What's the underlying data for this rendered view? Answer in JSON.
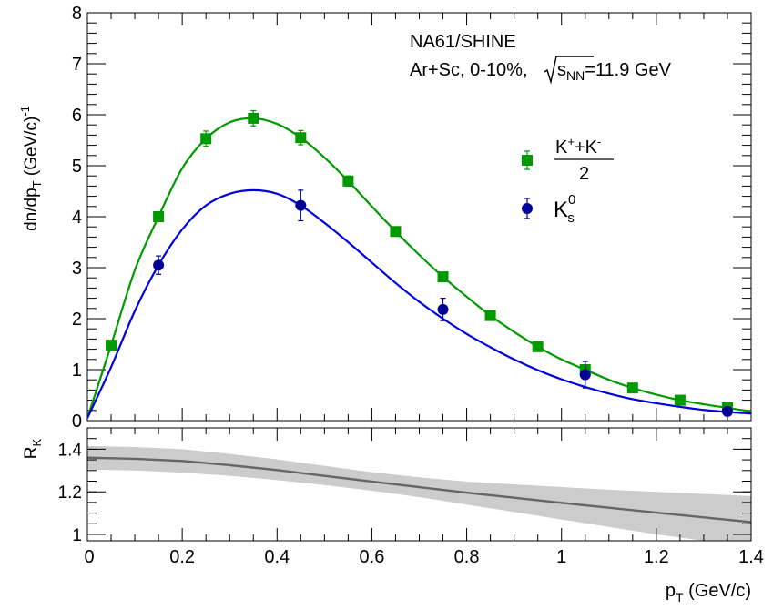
{
  "chart_data": [
    {
      "type": "scatter",
      "panel": "main",
      "annotations": {
        "experiment": "NA61/SHINE",
        "system": "Ar+Sc, 0-10%, ",
        "sqrt_label": "s",
        "sqrt_sub": "NN",
        "energy": "=11.9 GeV"
      },
      "ylabel": {
        "main": "dn/dp",
        "sub": "T",
        "units": " (GeV/c)",
        "sup": "-1"
      },
      "xlim": [
        0,
        1.4
      ],
      "ylim": [
        0,
        8
      ],
      "xticks": [
        "0",
        "0.2",
        "0.4",
        "0.6",
        "0.8",
        "1",
        "1.2",
        "1.4"
      ],
      "yticks": [
        "0",
        "1",
        "2",
        "3",
        "4",
        "5",
        "6",
        "7",
        "8"
      ],
      "legend": {
        "position": "right",
        "kcharged": {
          "num": "K",
          "plus_sup": "+",
          "plus": "+K",
          "minus_sup": "-",
          "den": "2"
        },
        "k0s": {
          "main": "K",
          "sup": "0",
          "sub": "s"
        }
      },
      "series": [
        {
          "key": "kcharged",
          "marker": "square",
          "color": "#009900",
          "x": [
            0.05,
            0.15,
            0.25,
            0.35,
            0.45,
            0.55,
            0.65,
            0.75,
            0.85,
            0.95,
            1.05,
            1.15,
            1.25,
            1.35
          ],
          "y": [
            1.48,
            4.0,
            5.53,
            5.93,
            5.55,
            4.7,
            3.71,
            2.82,
            2.06,
            1.45,
            1.0,
            0.64,
            0.4,
            0.25
          ],
          "err": [
            0.06,
            0.08,
            0.15,
            0.15,
            0.14,
            0.1,
            0.08,
            0.06,
            0.05,
            0.04,
            0.04,
            0.03,
            0.03,
            0.02
          ]
        },
        {
          "key": "k0s",
          "marker": "circle",
          "color": "#000099",
          "x": [
            0.15,
            0.45,
            0.75,
            1.05,
            1.35
          ],
          "y": [
            3.05,
            4.22,
            2.18,
            0.9,
            0.18
          ],
          "err": [
            0.18,
            0.3,
            0.22,
            0.26,
            0.06
          ]
        }
      ],
      "fits": [
        {
          "key": "kcharged-fit",
          "color": "#009900",
          "x": [
            0.0,
            0.05,
            0.1,
            0.15,
            0.2,
            0.25,
            0.3,
            0.35,
            0.4,
            0.45,
            0.5,
            0.55,
            0.6,
            0.65,
            0.7,
            0.75,
            0.8,
            0.85,
            0.9,
            0.95,
            1.0,
            1.05,
            1.1,
            1.15,
            1.2,
            1.25,
            1.3,
            1.35,
            1.4
          ],
          "y": [
            0.05,
            1.48,
            2.95,
            4.0,
            4.95,
            5.53,
            5.85,
            5.93,
            5.82,
            5.55,
            5.16,
            4.7,
            4.2,
            3.71,
            3.25,
            2.82,
            2.43,
            2.06,
            1.74,
            1.45,
            1.2,
            1.0,
            0.8,
            0.64,
            0.51,
            0.4,
            0.32,
            0.25,
            0.18
          ]
        },
        {
          "key": "k0s-fit",
          "color": "#0000dd",
          "x": [
            0.0,
            0.05,
            0.1,
            0.15,
            0.2,
            0.25,
            0.3,
            0.35,
            0.4,
            0.45,
            0.5,
            0.55,
            0.6,
            0.65,
            0.7,
            0.75,
            0.8,
            0.85,
            0.9,
            0.95,
            1.0,
            1.05,
            1.1,
            1.15,
            1.2,
            1.25,
            1.3,
            1.35,
            1.4
          ],
          "y": [
            0.05,
            1.05,
            2.15,
            3.05,
            3.75,
            4.22,
            4.45,
            4.52,
            4.45,
            4.22,
            3.88,
            3.5,
            3.1,
            2.7,
            2.33,
            2.0,
            1.7,
            1.44,
            1.2,
            0.99,
            0.81,
            0.66,
            0.53,
            0.42,
            0.34,
            0.27,
            0.21,
            0.17,
            0.14
          ]
        }
      ]
    },
    {
      "type": "line",
      "panel": "ratio",
      "ylabel": {
        "main": "R",
        "sub": "K"
      },
      "xlabel": {
        "main": "p",
        "sub": "T",
        "units": " (GeV/c)"
      },
      "xlim": [
        0,
        1.4
      ],
      "ylim": [
        0.97,
        1.5
      ],
      "yticks": [
        "1",
        "1.2",
        "1.4"
      ],
      "yticks_values": [
        1,
        1.2,
        1.4
      ],
      "xticks": [
        "0",
        "0.2",
        "0.4",
        "0.6",
        "0.8",
        "1",
        "1.2",
        "1.4"
      ],
      "line_color": "#666666",
      "band_color": "#cccccc",
      "x": [
        0.0,
        0.1,
        0.2,
        0.3,
        0.4,
        0.5,
        0.6,
        0.7,
        0.8,
        0.9,
        1.0,
        1.1,
        1.2,
        1.3,
        1.4
      ],
      "y": [
        1.36,
        1.355,
        1.345,
        1.325,
        1.302,
        1.275,
        1.248,
        1.222,
        1.196,
        1.172,
        1.148,
        1.125,
        1.102,
        1.08,
        1.058
      ],
      "band_low": [
        1.305,
        1.3,
        1.29,
        1.275,
        1.255,
        1.232,
        1.205,
        1.175,
        1.14,
        1.105,
        1.07,
        1.035,
        1.0,
        0.97,
        0.94
      ],
      "band_high": [
        1.415,
        1.41,
        1.4,
        1.378,
        1.352,
        1.322,
        1.292,
        1.268,
        1.248,
        1.235,
        1.222,
        1.21,
        1.2,
        1.19,
        1.18
      ]
    }
  ]
}
